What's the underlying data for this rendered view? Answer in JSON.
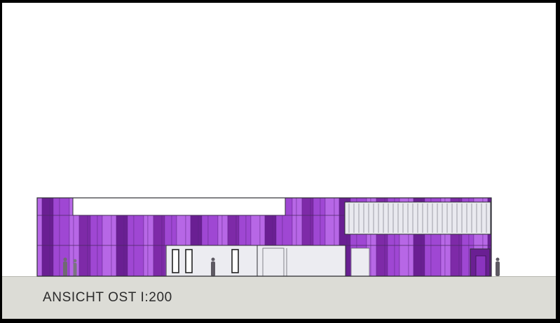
{
  "drawing": {
    "caption": "ANSICHT OST I:200"
  },
  "colors": {
    "facade_light": "#b767e6",
    "facade_mid": "#9f47d3",
    "facade_dark": "#7e2aa8",
    "facade_deep": "#6a1f93",
    "louver_fill": "#e9e9ef",
    "glazing_fill": "#ececf1",
    "ground": "#dcdcd6",
    "outline": "#2f2f35"
  }
}
